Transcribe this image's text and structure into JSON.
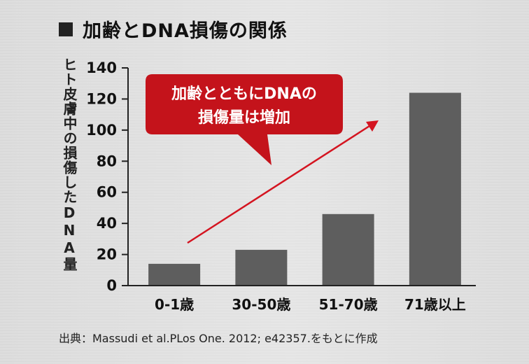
{
  "title": "加齢とDNA損傷の関係",
  "source": "出典：Massudi et al.PLos One. 2012; e42357.をもとに作成",
  "callout": {
    "line1": "加齢とともにDNAの",
    "line2": "損傷量は増加"
  },
  "colors": {
    "bar": "#5e5e5e",
    "callout": "#c4131b",
    "arrow": "#d41420",
    "axis": "#222222"
  },
  "chart_data": {
    "type": "bar",
    "categories": [
      "0-1歳",
      "30-50歳",
      "51-70歳",
      "71歳以上"
    ],
    "values": [
      14,
      23,
      46,
      124
    ],
    "ylabel": "ヒト皮膚中の損傷したDNA量",
    "ylim": [
      0,
      140
    ],
    "yticks": [
      0,
      20,
      40,
      60,
      80,
      100,
      120,
      140
    ],
    "grid": false,
    "legend": "none"
  }
}
